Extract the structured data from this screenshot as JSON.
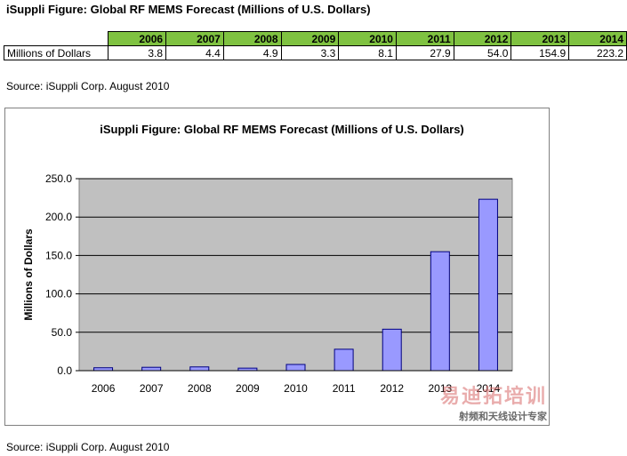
{
  "page_title": "iSuppli Figure: Global RF MEMS Forecast (Millions of U.S. Dollars)",
  "table": {
    "row_label": "Millions of Dollars",
    "years": [
      "2006",
      "2007",
      "2008",
      "2009",
      "2010",
      "2011",
      "2012",
      "2013",
      "2014"
    ],
    "values": [
      "3.8",
      "4.4",
      "4.9",
      "3.3",
      "8.1",
      "27.9",
      "54.0",
      "154.9",
      "223.2"
    ]
  },
  "source_top": "Source: iSuppli Corp. August 2010",
  "source_bottom": "Source: iSuppli Corp. August 2010",
  "watermark": {
    "brand": "易迪拓培训",
    "tagline": "射频和天线设计专家"
  },
  "colors": {
    "header_green": "#7fc241",
    "plot_bg": "#c0c0c0",
    "bar_fill": "#9999ff",
    "bar_stroke": "#000080"
  },
  "chart_data": {
    "type": "bar",
    "title": "iSuppli Figure: Global RF MEMS Forecast  (Millions of U.S. Dollars)",
    "xlabel": "",
    "ylabel": "Millions of Dollars",
    "categories": [
      "2006",
      "2007",
      "2008",
      "2009",
      "2010",
      "2011",
      "2012",
      "2013",
      "2014"
    ],
    "values": [
      3.8,
      4.4,
      4.9,
      3.3,
      8.1,
      27.9,
      54.0,
      154.9,
      223.2
    ],
    "ylim": [
      0,
      250
    ],
    "yticks": [
      "0.0",
      "50.0",
      "100.0",
      "150.0",
      "200.0",
      "250.0"
    ],
    "grid": true,
    "legend": "none"
  }
}
